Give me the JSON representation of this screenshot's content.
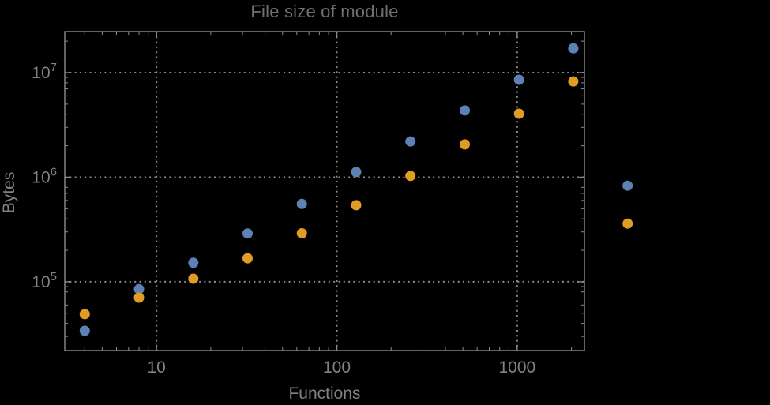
{
  "title": "File size of module",
  "chart_data": {
    "type": "scatter",
    "title": "File size of module",
    "xlabel": "Functions",
    "ylabel": "Bytes",
    "xscale": "log",
    "yscale": "log",
    "xlim": [
      3.1,
      2360
    ],
    "ylim": [
      22000,
      24700000
    ],
    "grid": "dotted gray gridlines at decade ticks, frame ticks on all four sides",
    "legend_position": "none",
    "x": [
      4,
      8,
      16,
      32,
      64,
      128,
      256,
      512,
      1024,
      2048,
      4096
    ],
    "series": [
      {
        "name": "series-blue",
        "color": "#5E81B5",
        "values": [
          34000,
          85000,
          152000,
          290000,
          555000,
          1120000,
          2200000,
          4350000,
          8550000,
          17100000,
          830000
        ]
      },
      {
        "name": "series-orange",
        "color": "#E19C24",
        "values": [
          49000,
          70500,
          107000,
          168000,
          291000,
          540000,
          1030000,
          2060000,
          4050000,
          8250000,
          360000
        ]
      }
    ],
    "x_major_ticks": [
      10,
      100,
      1000
    ],
    "x_tick_labels": [
      "10",
      "100",
      "1000"
    ],
    "y_major_tick_exponents": [
      5,
      6,
      7
    ],
    "y_tick_label_base": "10",
    "marker_diameter_px": 13
  },
  "colors": {
    "background": "#000000",
    "frame": "#8c8c8c",
    "grid": "#8c8c8c",
    "tick": "#8c8c8c",
    "tick_label_text": "#828282",
    "title_text": "#6f6f6f",
    "axis_label_text": "#828282",
    "series_blue": "#5E81B5",
    "series_orange": "#E19C24"
  }
}
